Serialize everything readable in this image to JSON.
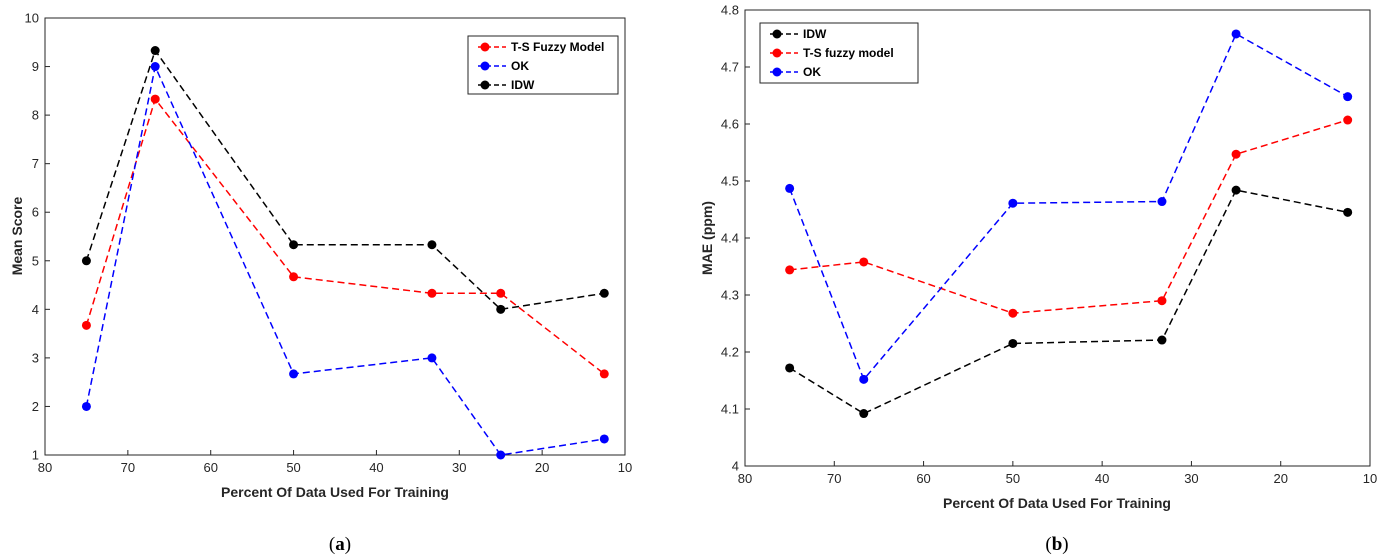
{
  "chart_data": [
    {
      "type": "line",
      "x": [
        75,
        66.7,
        50,
        33.3,
        25,
        12.5
      ],
      "xlabel": "Percent Of Data Used For Training",
      "ylabel": "Mean Score",
      "xlim": [
        80,
        10
      ],
      "ylim": [
        1,
        10
      ],
      "xticks": [
        "80",
        "70",
        "60",
        "50",
        "40",
        "30",
        "20",
        "10"
      ],
      "yticks": [
        "1",
        "2",
        "3",
        "4",
        "5",
        "6",
        "7",
        "8",
        "9",
        "10"
      ],
      "legend_position": "top-right",
      "series": [
        {
          "name": "T-S Fuzzy Model",
          "color": "#ff0000",
          "values": [
            3.67,
            8.33,
            4.67,
            4.33,
            4.33,
            2.67
          ]
        },
        {
          "name": "OK",
          "color": "#0000ff",
          "values": [
            2.0,
            9.0,
            2.67,
            3.0,
            1.0,
            1.33
          ]
        },
        {
          "name": "IDW",
          "color": "#000000",
          "values": [
            5.0,
            9.33,
            5.33,
            5.33,
            4.0,
            4.33
          ]
        }
      ],
      "caption_letter": "a"
    },
    {
      "type": "line",
      "x": [
        75,
        66.7,
        50,
        33.3,
        25,
        12.5
      ],
      "xlabel": "Percent Of Data Used For Training",
      "ylabel": "MAE (ppm)",
      "xlim": [
        80,
        10
      ],
      "ylim": [
        4,
        4.8
      ],
      "xticks": [
        "80",
        "70",
        "60",
        "50",
        "40",
        "30",
        "20",
        "10"
      ],
      "yticks": [
        "4",
        "4.1",
        "4.2",
        "4.3",
        "4.4",
        "4.5",
        "4.6",
        "4.7",
        "4.8"
      ],
      "legend_position": "top-left",
      "series": [
        {
          "name": "IDW",
          "color": "#000000",
          "values": [
            4.172,
            4.092,
            4.215,
            4.221,
            4.484,
            4.445
          ]
        },
        {
          "name": "T-S fuzzy model",
          "color": "#ff0000",
          "values": [
            4.344,
            4.358,
            4.268,
            4.29,
            4.547,
            4.607
          ]
        },
        {
          "name": "OK",
          "color": "#0000ff",
          "values": [
            4.487,
            4.152,
            4.461,
            4.464,
            4.758,
            4.648
          ]
        }
      ],
      "caption_letter": "b"
    }
  ]
}
